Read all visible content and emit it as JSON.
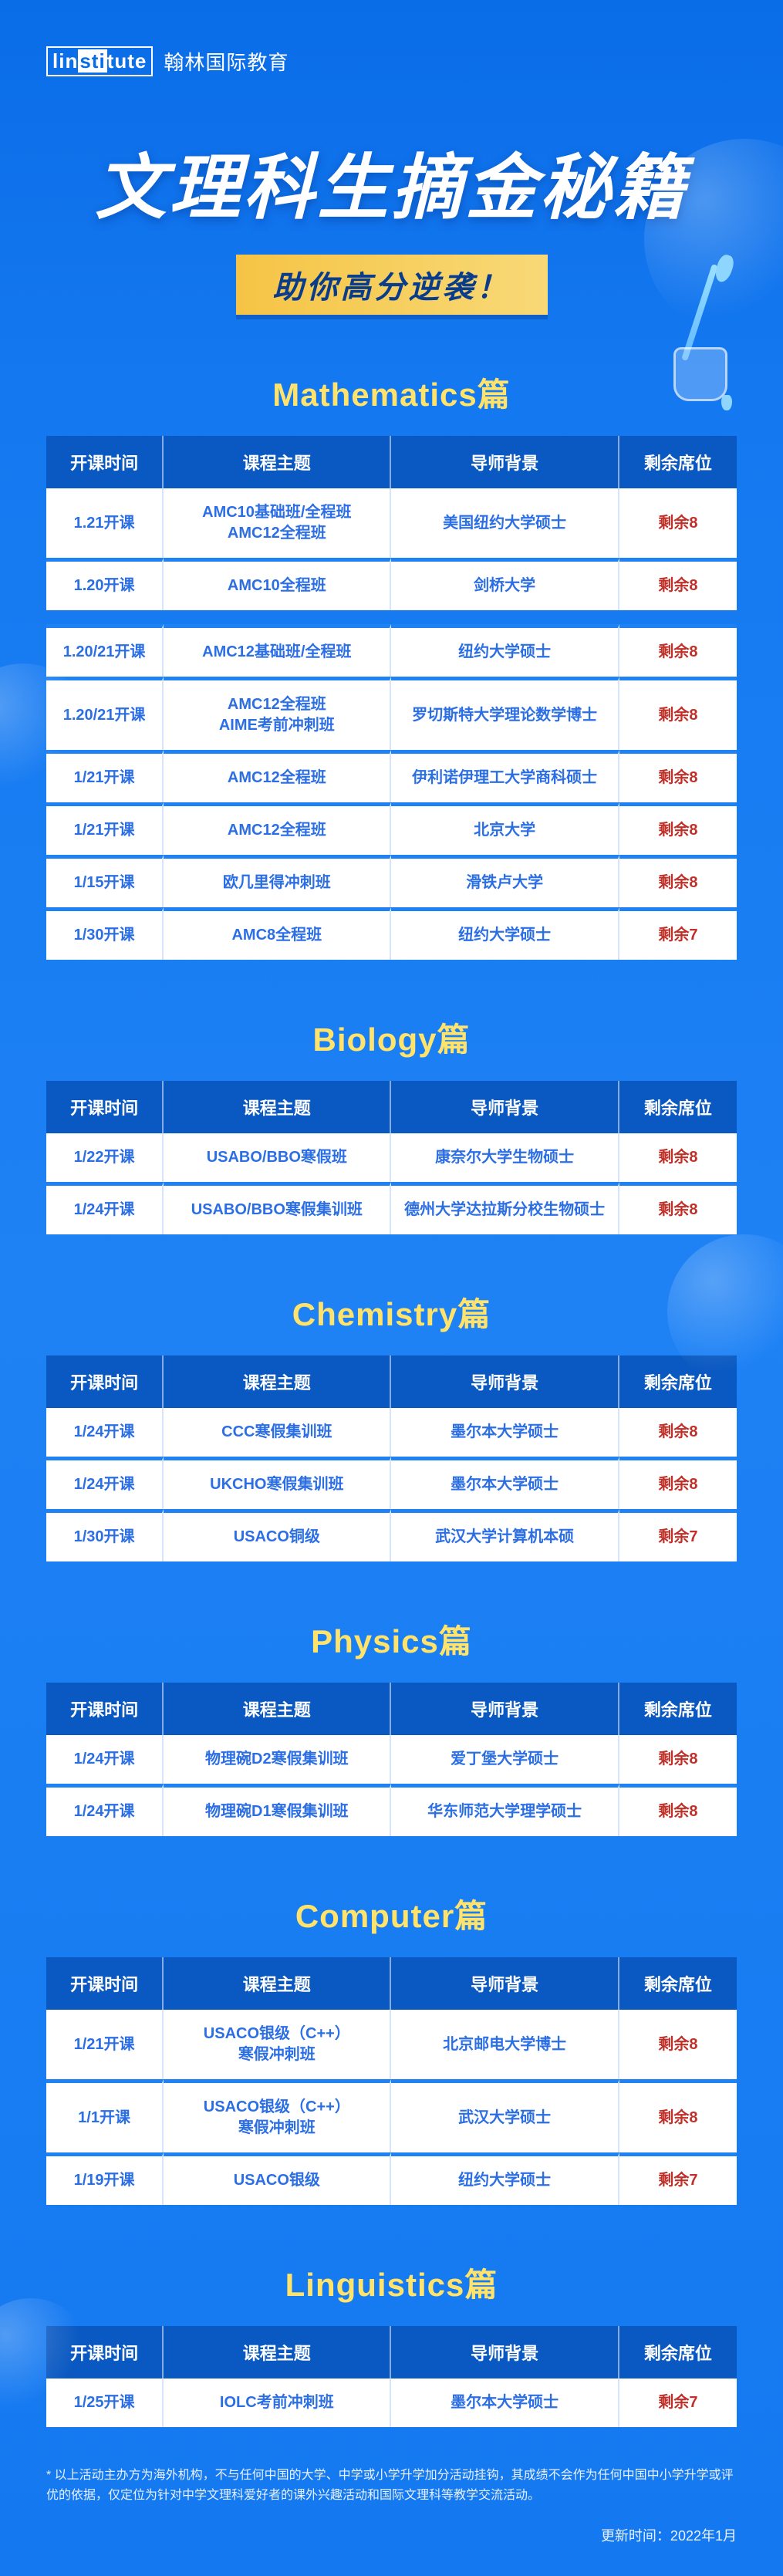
{
  "brand": {
    "logo_left": "lin",
    "logo_mid": "sti",
    "logo_right": "tute",
    "name": "翰林国际教育"
  },
  "hero": {
    "title": "文理科生摘金秘籍",
    "subtitle": "助你高分逆袭！"
  },
  "columns": {
    "time": "开课时间",
    "topic": "课程主题",
    "background": "导师背景",
    "seats": "剩余席位"
  },
  "sections": [
    {
      "title": "Mathematics篇",
      "gap_after": 2,
      "rows": [
        {
          "time": "1.21开课",
          "topic": "AMC10基础班/全程班\nAMC12全程班",
          "bg": "美国纽约大学硕士",
          "seats": "剩余8"
        },
        {
          "time": "1.20开课",
          "topic": "AMC10全程班",
          "bg": "剑桥大学",
          "seats": "剩余8"
        },
        {
          "time": "1.20/21开课",
          "topic": "AMC12基础班/全程班",
          "bg": "纽约大学硕士",
          "seats": "剩余8"
        },
        {
          "time": "1.20/21开课",
          "topic": "AMC12全程班\nAIME考前冲刺班",
          "bg": "罗切斯特大学理论数学博士",
          "seats": "剩余8"
        },
        {
          "time": "1/21开课",
          "topic": "AMC12全程班",
          "bg": "伊利诺伊理工大学商科硕士",
          "seats": "剩余8"
        },
        {
          "time": "1/21开课",
          "topic": "AMC12全程班",
          "bg": "北京大学",
          "seats": "剩余8"
        },
        {
          "time": "1/15开课",
          "topic": "欧几里得冲刺班",
          "bg": "滑铁卢大学",
          "seats": "剩余8"
        },
        {
          "time": "1/30开课",
          "topic": "AMC8全程班",
          "bg": "纽约大学硕士",
          "seats": "剩余7"
        }
      ]
    },
    {
      "title": "Biology篇",
      "rows": [
        {
          "time": "1/22开课",
          "topic": "USABO/BBO寒假班",
          "bg": "康奈尔大学生物硕士",
          "seats": "剩余8"
        },
        {
          "time": "1/24开课",
          "topic": "USABO/BBO寒假集训班",
          "bg": "德州大学达拉斯分校生物硕士",
          "seats": "剩余8"
        }
      ]
    },
    {
      "title": "Chemistry篇",
      "rows": [
        {
          "time": "1/24开课",
          "topic": "CCC寒假集训班",
          "bg": "墨尔本大学硕士",
          "seats": "剩余8"
        },
        {
          "time": "1/24开课",
          "topic": "UKCHO寒假集训班",
          "bg": "墨尔本大学硕士",
          "seats": "剩余8"
        },
        {
          "time": "1/30开课",
          "topic": "USACO铜级",
          "bg": "武汉大学计算机本硕",
          "seats": "剩余7"
        }
      ]
    },
    {
      "title": "Physics篇",
      "rows": [
        {
          "time": "1/24开课",
          "topic": "物理碗D2寒假集训班",
          "bg": "爱丁堡大学硕士",
          "seats": "剩余8"
        },
        {
          "time": "1/24开课",
          "topic": "物理碗D1寒假集训班",
          "bg": "华东师范大学理学硕士",
          "seats": "剩余8"
        }
      ]
    },
    {
      "title": "Computer篇",
      "rows": [
        {
          "time": "1/21开课",
          "topic": "USACO银级（C++）\n寒假冲刺班",
          "bg": "北京邮电大学博士",
          "seats": "剩余8"
        },
        {
          "time": "1/1开课",
          "topic": "USACO银级（C++）\n寒假冲刺班",
          "bg": "武汉大学硕士",
          "seats": "剩余8"
        },
        {
          "time": "1/19开课",
          "topic": "USACO银级",
          "bg": "纽约大学硕士",
          "seats": "剩余7"
        }
      ]
    },
    {
      "title": "Linguistics篇",
      "rows": [
        {
          "time": "1/25开课",
          "topic": "IOLC考前冲刺班",
          "bg": "墨尔本大学硕士",
          "seats": "剩余7"
        }
      ]
    }
  ],
  "footnote": "* 以上活动主办方为海外机构，不与任何中国的大学、中学或小学升学加分活动挂钩，其成绩不会作为任何中国中小学升学或评优的依据，仅定位为针对中学文理科爱好者的课外兴趣活动和国际文理科等教学交流活动。",
  "update": "更新时间：2022年1月"
}
